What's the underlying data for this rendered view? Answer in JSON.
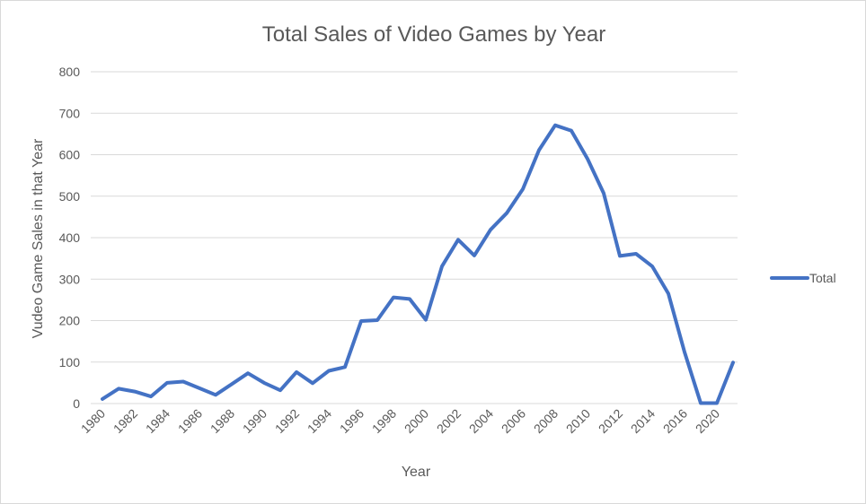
{
  "chart_data": {
    "type": "line",
    "title": "Total Sales of Video Games by Year",
    "xlabel": "Year",
    "ylabel": "Vudeo Game Sales in that Year",
    "ylim": [
      0,
      800
    ],
    "yticks": [
      0,
      100,
      200,
      300,
      400,
      500,
      600,
      700,
      800
    ],
    "xtick_labels": [
      "1980",
      "1982",
      "1984",
      "1986",
      "1988",
      "1990",
      "1992",
      "1994",
      "1996",
      "1998",
      "2000",
      "2002",
      "2004",
      "2006",
      "2008",
      "2010",
      "2012",
      "2014",
      "2016",
      "2020"
    ],
    "categories": [
      "1980",
      "1981",
      "1982",
      "1983",
      "1984",
      "1985",
      "1986",
      "1987",
      "1988",
      "1989",
      "1990",
      "1991",
      "1992",
      "1993",
      "1994",
      "1995",
      "1996",
      "1997",
      "1998",
      "1999",
      "2000",
      "2001",
      "2002",
      "2003",
      "2004",
      "2005",
      "2006",
      "2007",
      "2008",
      "2009",
      "2010",
      "2011",
      "2012",
      "2013",
      "2014",
      "2015",
      "2016",
      "2017",
      "2020"
    ],
    "series": [
      {
        "name": "Total",
        "color": "#4472c4",
        "values": [
          11,
          36,
          29,
          17,
          50,
          53,
          37,
          21,
          47,
          73,
          50,
          32,
          76,
          49,
          79,
          88,
          199,
          201,
          256,
          252,
          202,
          331,
          395,
          357,
          419,
          459,
          517,
          611,
          671,
          658,
          590,
          507,
          356,
          361,
          331,
          265,
          124,
          1,
          1
        ]
      }
    ],
    "extra_point": {
      "value": 99
    },
    "grid": true,
    "legend_position": "right"
  }
}
